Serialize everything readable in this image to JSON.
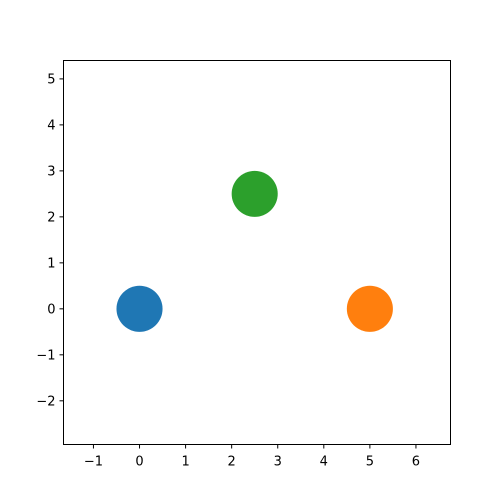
{
  "chart_data": {
    "type": "scatter",
    "title": "",
    "xlabel": "",
    "ylabel": "",
    "xlim": [
      -1.65,
      6.75
    ],
    "ylim": [
      -2.95,
      5.4
    ],
    "xticks": [
      -1,
      0,
      1,
      2,
      3,
      4,
      5,
      6
    ],
    "yticks": [
      -2,
      -1,
      0,
      1,
      2,
      3,
      4,
      5
    ],
    "grid": false,
    "points": [
      {
        "x": 0,
        "y": 0,
        "radius": 0.5,
        "color": "#1f77b4"
      },
      {
        "x": 5,
        "y": 0,
        "radius": 0.5,
        "color": "#ff7f0e"
      },
      {
        "x": 2.5,
        "y": 2.5,
        "radius": 0.5,
        "color": "#2ca02c"
      }
    ]
  }
}
